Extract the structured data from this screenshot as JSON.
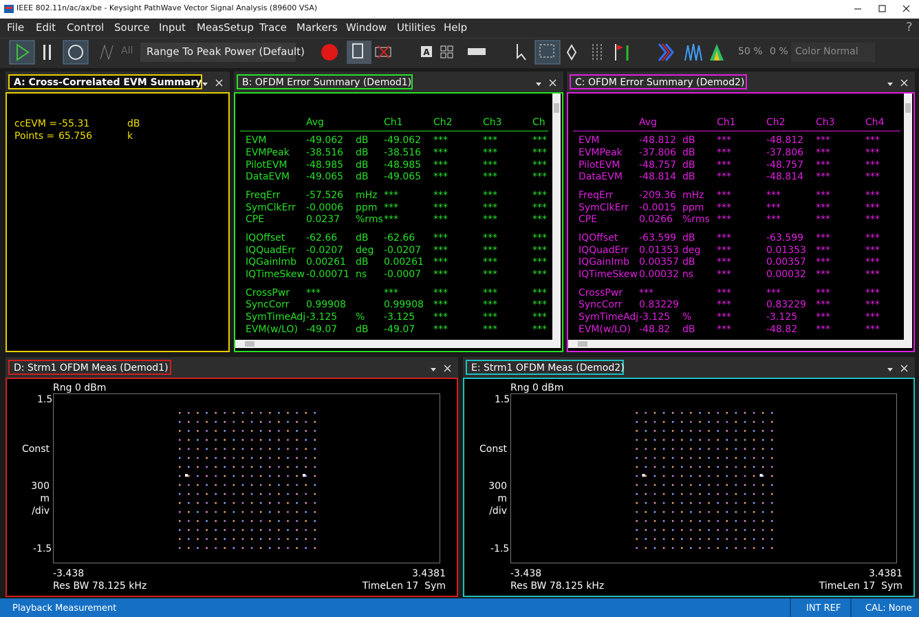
{
  "window": {
    "title": "IEEE 802.11n/ac/ax/be - Keysight PathWave Vector Signal Analysis (89600 VSA)"
  },
  "menu": {
    "items": [
      "File",
      "Edit",
      "Control",
      "Source",
      "Input",
      "MeasSetup",
      "Trace",
      "Markers",
      "Window",
      "Utilities",
      "Help"
    ],
    "help_button": "?"
  },
  "toolbar": {
    "all": "All",
    "range": "Range To Peak Power (Default)",
    "zoom1": "50 %",
    "zoom2": "0 %",
    "color": "Color Normal"
  },
  "panel_a": {
    "title": "A: Cross-Correlated EVM Summary",
    "lines": [
      {
        "label": "ccEVM =",
        "value": "-55.31",
        "unit": "dB"
      },
      {
        "label": "Points =",
        "value": "65.756",
        "unit": "k"
      }
    ]
  },
  "panel_b": {
    "title": "B: OFDM Error Summary (Demod1)",
    "columns": [
      "Avg",
      "Ch1",
      "Ch2",
      "Ch3",
      "Ch"
    ],
    "groups": [
      [
        {
          "name": "EVM",
          "avg": "-49.062",
          "unit": "dB",
          "ch": [
            "-49.062",
            "***",
            "***",
            "***"
          ]
        },
        {
          "name": "EVMPeak",
          "avg": "-38.516",
          "unit": "dB",
          "ch": [
            "-38.516",
            "***",
            "***",
            "***"
          ]
        },
        {
          "name": "PilotEVM",
          "avg": "-48.985",
          "unit": "dB",
          "ch": [
            "-48.985",
            "***",
            "***",
            "***"
          ]
        },
        {
          "name": "DataEVM",
          "avg": "-49.065",
          "unit": "dB",
          "ch": [
            "-49.065",
            "***",
            "***",
            "***"
          ]
        }
      ],
      [
        {
          "name": "FreqErr",
          "avg": "-57.526",
          "unit": "mHz",
          "ch": [
            "***",
            "***",
            "***",
            "***"
          ]
        },
        {
          "name": "SymClkErr",
          "avg": "-0.0006",
          "unit": "ppm",
          "ch": [
            "***",
            "***",
            "***",
            "***"
          ]
        },
        {
          "name": "CPE",
          "avg": "0.0237",
          "unit": "%rms",
          "ch": [
            "***",
            "***",
            "***",
            "***"
          ]
        }
      ],
      [
        {
          "name": "IQOffset",
          "avg": "-62.66",
          "unit": "dB",
          "ch": [
            "-62.66",
            "***",
            "***",
            "***"
          ]
        },
        {
          "name": "IQQuadErr",
          "avg": "-0.0207",
          "unit": "deg",
          "ch": [
            "-0.0207",
            "***",
            "***",
            "***"
          ]
        },
        {
          "name": "IQGainImb",
          "avg": "0.00261",
          "unit": "dB",
          "ch": [
            "0.00261",
            "***",
            "***",
            "***"
          ]
        },
        {
          "name": "IQTimeSkew",
          "avg": "-0.00071",
          "unit": "ns",
          "ch": [
            "-0.0007",
            "***",
            "***",
            "***"
          ]
        }
      ],
      [
        {
          "name": "CrossPwr",
          "avg": "***",
          "ch": [
            "***",
            "***",
            "***",
            "***"
          ]
        },
        {
          "name": "SyncCorr",
          "avg": "0.99908",
          "ch": [
            "0.99908",
            "***",
            "***",
            "***"
          ]
        },
        {
          "name": "SymTimeAdj",
          "avg": "-3.125",
          "unit": "%",
          "ch": [
            "-3.125",
            "***",
            "***",
            "***"
          ]
        },
        {
          "name": "EVM(w/LO)",
          "avg": "-49.07",
          "unit": "dB",
          "ch": [
            "-49.07",
            "***",
            "***",
            "***"
          ]
        }
      ]
    ]
  },
  "panel_c": {
    "title": "C: OFDM Error Summary (Demod2)",
    "columns": [
      "Avg",
      "Ch1",
      "Ch2",
      "Ch3",
      "Ch4"
    ],
    "groups": [
      [
        {
          "name": "EVM",
          "avg": "-48.812",
          "unit": "dB",
          "ch": [
            "***",
            "-48.812",
            "***",
            "***"
          ]
        },
        {
          "name": "EVMPeak",
          "avg": "-37.806",
          "unit": "dB",
          "ch": [
            "***",
            "-37.806",
            "***",
            "***"
          ]
        },
        {
          "name": "PilotEVM",
          "avg": "-48.757",
          "unit": "dB",
          "ch": [
            "***",
            "-48.757",
            "***",
            "***"
          ]
        },
        {
          "name": "DataEVM",
          "avg": "-48.814",
          "unit": "dB",
          "ch": [
            "***",
            "-48.814",
            "***",
            "***"
          ]
        }
      ],
      [
        {
          "name": "FreqErr",
          "avg": "-209.36",
          "unit": "mHz",
          "ch": [
            "***",
            "***",
            "***",
            "***"
          ]
        },
        {
          "name": "SymClkErr",
          "avg": "-0.0015",
          "unit": "ppm",
          "ch": [
            "***",
            "***",
            "***",
            "***"
          ]
        },
        {
          "name": "CPE",
          "avg": "0.0266",
          "unit": "%rms",
          "ch": [
            "***",
            "***",
            "***",
            "***"
          ]
        }
      ],
      [
        {
          "name": "IQOffset",
          "avg": "-63.599",
          "unit": "dB",
          "ch": [
            "***",
            "-63.599",
            "***",
            "***"
          ]
        },
        {
          "name": "IQQuadErr",
          "avg": "0.01353",
          "unit": "deg",
          "ch": [
            "***",
            "0.01353",
            "***",
            "***"
          ]
        },
        {
          "name": "IQGainImb",
          "avg": "0.00357",
          "unit": "dB",
          "ch": [
            "***",
            "0.00357",
            "***",
            "***"
          ]
        },
        {
          "name": "IQTimeSkew",
          "avg": "0.00032",
          "unit": "ns",
          "ch": [
            "***",
            "0.00032",
            "***",
            "***"
          ]
        }
      ],
      [
        {
          "name": "CrossPwr",
          "avg": "***",
          "ch": [
            "***",
            "***",
            "***",
            "***"
          ]
        },
        {
          "name": "SyncCorr",
          "avg": "0.83229",
          "ch": [
            "***",
            "0.83229",
            "***",
            "***"
          ]
        },
        {
          "name": "SymTimeAdj",
          "avg": "-3.125",
          "unit": "%",
          "ch": [
            "***",
            "-3.125",
            "***",
            "***"
          ]
        },
        {
          "name": "EVM(w/LO)",
          "avg": "-48.82",
          "unit": "dB",
          "ch": [
            "***",
            "-48.82",
            "***",
            "***"
          ]
        }
      ]
    ]
  },
  "panel_d": {
    "title": "D: Strm1 OFDM Meas (Demod1)",
    "range": "Rng 0 dBm",
    "y_top": "1.5",
    "y_label": [
      "Const",
      "300",
      "m",
      "/div"
    ],
    "y_bottom": "-1.5",
    "x_left": "-3.438",
    "x_right": "3.4381",
    "res_bw": "Res BW 78.125 kHz",
    "time_len": "TimeLen 17  Sym"
  },
  "panel_e": {
    "title": "E: Strm1 OFDM Meas (Demod2)",
    "range": "Rng 0 dBm",
    "y_top": "1.5",
    "y_label": [
      "Const",
      "300",
      "m",
      "/div"
    ],
    "y_bottom": "-1.5",
    "x_left": "-3.438",
    "x_right": "3.4381",
    "res_bw": "Res BW 78.125 kHz",
    "time_len": "TimeLen 17  Sym"
  },
  "status": {
    "left": "Playback Measurement",
    "ref": "INT REF",
    "cal": "CAL: None"
  }
}
